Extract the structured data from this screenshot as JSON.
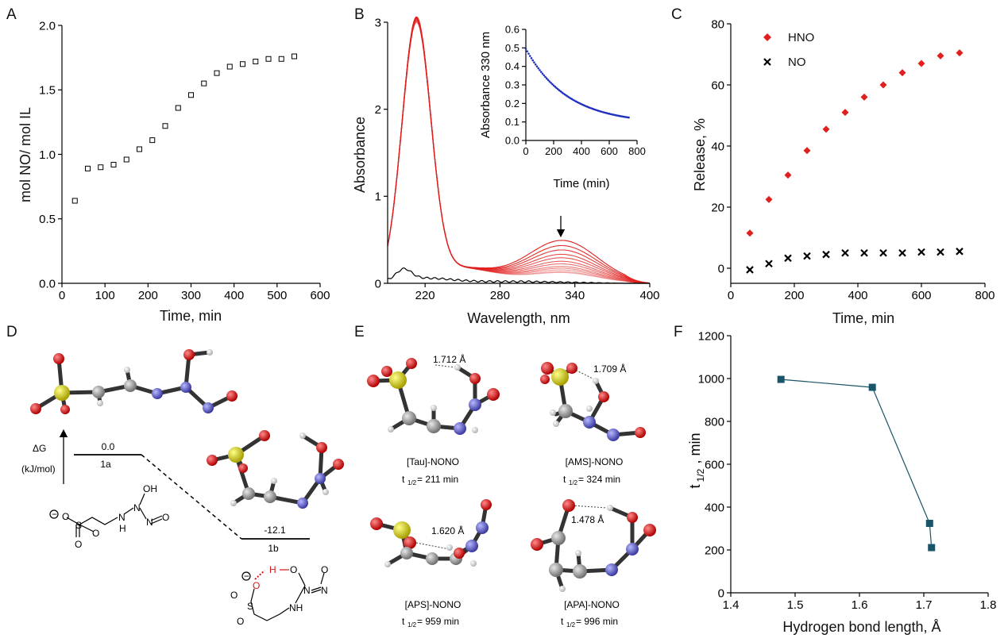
{
  "panel_letters": [
    "A",
    "B",
    "C",
    "D",
    "E",
    "F"
  ],
  "chart_data": [
    {
      "panel": "A",
      "type": "scatter",
      "xlabel": "Time, min",
      "ylabel": "mol NO/ mol IL",
      "xlim": [
        0,
        600
      ],
      "ylim": [
        0,
        2.0
      ],
      "xticks": [
        "0",
        "100",
        "200",
        "300",
        "400",
        "500",
        "600"
      ],
      "yticks": [
        "0.0",
        "0.5",
        "1.0",
        "1.5",
        "2.0"
      ],
      "marker": "open-square",
      "x": [
        30,
        60,
        90,
        120,
        150,
        180,
        210,
        240,
        270,
        300,
        330,
        360,
        390,
        420,
        450,
        480,
        510,
        540
      ],
      "y": [
        0.64,
        0.89,
        0.9,
        0.92,
        0.96,
        1.04,
        1.11,
        1.22,
        1.36,
        1.46,
        1.55,
        1.63,
        1.68,
        1.7,
        1.72,
        1.74,
        1.74,
        1.76
      ]
    },
    {
      "panel": "B",
      "type": "line",
      "xlabel": "Wavelength, nm",
      "ylabel": "Absorbance",
      "xlim": [
        190,
        400
      ],
      "ylim": [
        0,
        3
      ],
      "xticks": [
        "220",
        "280",
        "340",
        "400"
      ],
      "yticks": [
        "0",
        "1",
        "2",
        "3"
      ],
      "spectra_peak_330nm": [
        0.49,
        0.43,
        0.38,
        0.33,
        0.29,
        0.25,
        0.22,
        0.19,
        0.17,
        0.15,
        0.13,
        0.12
      ],
      "main_peak_max": 2.96,
      "main_peak_nm": 213,
      "baseline_peak": 0.12,
      "series_color": "#e0201f",
      "baseline_color": "#000000",
      "arrow_at_nm": 330,
      "inset": {
        "type": "scatter",
        "xlabel": "Time (min)",
        "ylabel": "Absorbance 330 nm",
        "xlim": [
          0,
          800
        ],
        "ylim": [
          0,
          0.6
        ],
        "xticks": [
          "0",
          "200",
          "400",
          "600",
          "800"
        ],
        "yticks": [
          "0.0",
          "0.1",
          "0.2",
          "0.3",
          "0.4",
          "0.5",
          "0.6"
        ],
        "color": "#1f2fbf",
        "a0": 0.495,
        "a_inf": 0.09,
        "k": 0.00335,
        "t_end": 740,
        "n_points": 75
      }
    },
    {
      "panel": "C",
      "type": "scatter",
      "xlabel": "Time, min",
      "ylabel": "Release, %",
      "xlim": [
        0,
        800
      ],
      "ylim": [
        -5,
        80
      ],
      "xticks": [
        "0",
        "200",
        "400",
        "600",
        "800"
      ],
      "yticks": [
        "0",
        "20",
        "40",
        "60",
        "80"
      ],
      "legend_position": "top-left",
      "series": [
        {
          "name": "HNO",
          "marker": "diamond",
          "color": "#e0201f",
          "x": [
            60,
            120,
            180,
            240,
            300,
            360,
            420,
            480,
            540,
            600,
            660,
            720
          ],
          "y": [
            11.5,
            22.5,
            30.5,
            38.5,
            45.5,
            51,
            56,
            60,
            64,
            67,
            69.5,
            70.5
          ]
        },
        {
          "name": "NO",
          "marker": "cross",
          "color": "#000000",
          "x": [
            60,
            120,
            180,
            240,
            300,
            360,
            420,
            480,
            540,
            600,
            660,
            720
          ],
          "y": [
            -0.5,
            1.5,
            3.3,
            4.0,
            4.5,
            5.0,
            5.0,
            5.0,
            5.0,
            5.3,
            5.3,
            5.5
          ]
        }
      ]
    },
    {
      "panel": "F",
      "type": "line",
      "xlabel": "Hydrogen bond length, Å",
      "ylabel": "t1/2, min",
      "xlim": [
        1.4,
        1.8
      ],
      "ylim": [
        0,
        1200
      ],
      "xticks": [
        "1.4",
        "1.5",
        "1.6",
        "1.7",
        "1.8"
      ],
      "yticks": [
        "0",
        "200",
        "400",
        "600",
        "800",
        "1000",
        "1200"
      ],
      "color": "#1a5468",
      "x": [
        1.478,
        1.62,
        1.709,
        1.712
      ],
      "y": [
        996,
        959,
        324,
        211
      ]
    }
  ],
  "panel_d": {
    "delta_g_label": "ΔG",
    "unit_label": "(kJ/mol)",
    "level_1a_value": "0.0",
    "level_1a_name": "1a",
    "level_1b_value": "-12.1",
    "level_1b_name": "1b"
  },
  "panel_e": {
    "molecules": [
      {
        "name": "[Tau]-NONO",
        "bond": "1.712 Å",
        "t_half": "= 211 min"
      },
      {
        "name": "[AMS]-NONO",
        "bond": "1.709 Å",
        "t_half": "= 324 min"
      },
      {
        "name": "[APS]-NONO",
        "bond": "1.620 Å",
        "t_half": "= 959 min"
      },
      {
        "name": "[APA]-NONO",
        "bond": "1.478 Å",
        "t_half": "= 996 min"
      }
    ],
    "t_prefix": "t",
    "t_sub": "1/2"
  },
  "colors": {
    "oxygen": "#d01818",
    "sulfur": "#d8d014",
    "nitrogen": "#5a5ac8",
    "carbon": "#9a9a9a",
    "hydrogen": "#f0f0f0"
  }
}
